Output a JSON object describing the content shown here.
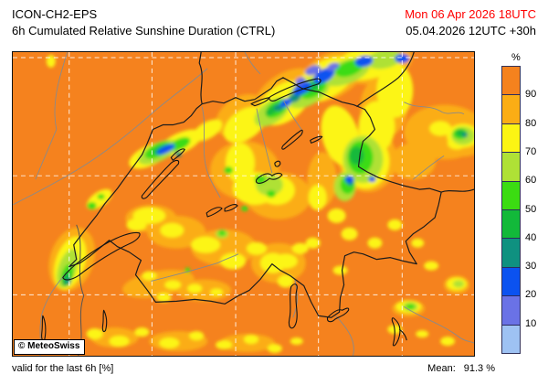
{
  "header": {
    "model": "ICON-CH2-EPS",
    "product": "6h Cumulated Relative Sunshine Duration (CTRL)",
    "valid_time": "Mon 06 Apr 2026 18UTC",
    "run_info": "05.04.2026 12UTC +30h"
  },
  "map": {
    "copyright": "© MeteoSwiss"
  },
  "legend": {
    "unit": "%",
    "tick_labels": [
      "90",
      "80",
      "70",
      "60",
      "50",
      "40",
      "30",
      "20",
      "10"
    ],
    "segment_colors_top_to_bottom": [
      "#f5821e",
      "#fbad15",
      "#fcf513",
      "#afe136",
      "#3bdc12",
      "#12b93a",
      "#0f9180",
      "#0b52f0",
      "#6a72e6",
      "#9ec2f3"
    ],
    "segment_ranges_top_to_bottom": [
      ">90",
      "80-90",
      "70-80",
      "60-70",
      "50-60",
      "40-50",
      "30-40",
      "20-30",
      "10-20",
      "<10"
    ]
  },
  "footer": {
    "valid_for": "valid for the last 6h [%]",
    "mean_label": "Mean:",
    "mean_value": "91.3 %"
  },
  "colors": {
    "valid_time_red": "#ff0000",
    "map_base_orange": "#f5821e",
    "grid_line": "#ffffff",
    "border_line": "#1c1c1c"
  }
}
